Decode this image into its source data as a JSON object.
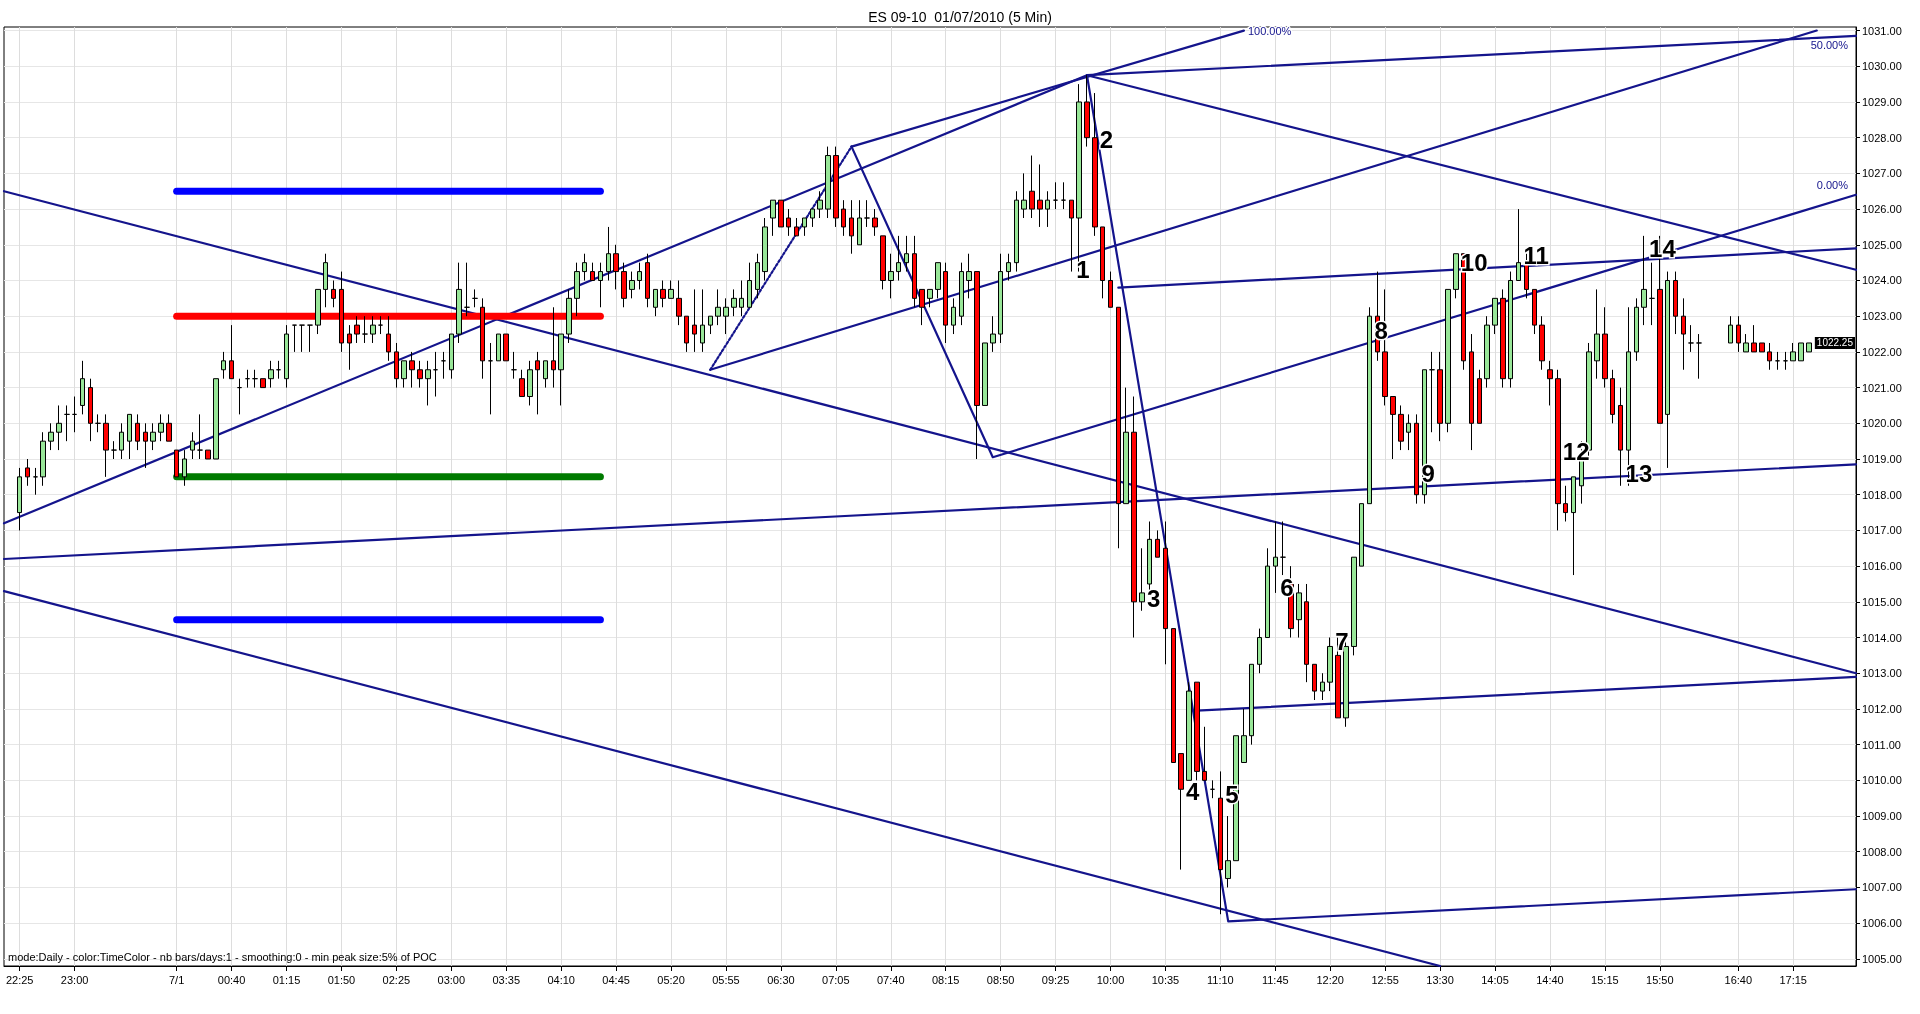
{
  "chart_data": {
    "type": "candlestick",
    "title": "ES 09-10  01/07/2010 (5 Min)",
    "x": [
      "2010-06-30T22:25",
      "2010-06-30T22:30",
      "2010-06-30T22:35",
      "2010-06-30T22:40",
      "2010-06-30T22:45",
      "2010-06-30T22:50",
      "2010-06-30T22:55",
      "2010-06-30T23:00",
      "2010-06-30T23:05",
      "2010-06-30T23:10",
      "2010-06-30T23:15",
      "2010-06-30T23:20",
      "2010-06-30T23:25",
      "2010-06-30T23:30",
      "2010-06-30T23:35",
      "2010-06-30T23:40",
      "2010-06-30T23:45",
      "2010-06-30T23:50",
      "2010-06-30T23:55",
      "2010-07-01T00:00",
      "2010-07-01T00:05",
      "2010-07-01T00:10",
      "2010-07-01T00:15",
      "2010-07-01T00:20",
      "2010-07-01T00:25",
      "2010-07-01T00:30",
      "2010-07-01T00:35",
      "2010-07-01T00:40",
      "2010-07-01T00:45",
      "2010-07-01T00:50",
      "2010-07-01T00:55",
      "2010-07-01T01:00",
      "2010-07-01T01:05",
      "2010-07-01T01:10",
      "2010-07-01T01:15",
      "2010-07-01T01:20",
      "2010-07-01T01:25",
      "2010-07-01T01:30",
      "2010-07-01T01:35",
      "2010-07-01T01:40",
      "2010-07-01T01:45",
      "2010-07-01T01:50",
      "2010-07-01T01:55",
      "2010-07-01T02:00",
      "2010-07-01T02:05",
      "2010-07-01T02:10",
      "2010-07-01T02:15",
      "2010-07-01T02:20",
      "2010-07-01T02:25",
      "2010-07-01T02:30",
      "2010-07-01T02:35",
      "2010-07-01T02:40",
      "2010-07-01T02:45",
      "2010-07-01T02:50",
      "2010-07-01T02:55",
      "2010-07-01T03:00",
      "2010-07-01T03:05",
      "2010-07-01T03:10",
      "2010-07-01T03:15",
      "2010-07-01T03:20",
      "2010-07-01T03:25",
      "2010-07-01T03:30",
      "2010-07-01T03:35",
      "2010-07-01T03:40",
      "2010-07-01T03:45",
      "2010-07-01T03:50",
      "2010-07-01T03:55",
      "2010-07-01T04:00",
      "2010-07-01T04:05",
      "2010-07-01T04:10",
      "2010-07-01T04:15",
      "2010-07-01T04:20",
      "2010-07-01T04:25",
      "2010-07-01T04:30",
      "2010-07-01T04:35",
      "2010-07-01T04:40",
      "2010-07-01T04:45",
      "2010-07-01T04:50",
      "2010-07-01T04:55",
      "2010-07-01T05:00",
      "2010-07-01T05:05",
      "2010-07-01T05:10",
      "2010-07-01T05:15",
      "2010-07-01T05:20",
      "2010-07-01T05:25",
      "2010-07-01T05:30",
      "2010-07-01T05:35",
      "2010-07-01T05:40",
      "2010-07-01T05:45",
      "2010-07-01T05:50",
      "2010-07-01T05:55",
      "2010-07-01T06:00",
      "2010-07-01T06:05",
      "2010-07-01T06:10",
      "2010-07-01T06:15",
      "2010-07-01T06:20",
      "2010-07-01T06:25",
      "2010-07-01T06:30",
      "2010-07-01T06:35",
      "2010-07-01T06:40",
      "2010-07-01T06:45",
      "2010-07-01T06:50",
      "2010-07-01T06:55",
      "2010-07-01T07:00",
      "2010-07-01T07:05",
      "2010-07-01T07:10",
      "2010-07-01T07:15",
      "2010-07-01T07:20",
      "2010-07-01T07:25",
      "2010-07-01T07:30",
      "2010-07-01T07:35",
      "2010-07-01T07:40",
      "2010-07-01T07:45",
      "2010-07-01T07:50",
      "2010-07-01T07:55",
      "2010-07-01T08:00",
      "2010-07-01T08:05",
      "2010-07-01T08:10",
      "2010-07-01T08:15",
      "2010-07-01T08:20",
      "2010-07-01T08:25",
      "2010-07-01T08:30",
      "2010-07-01T08:35",
      "2010-07-01T08:40",
      "2010-07-01T08:45",
      "2010-07-01T08:50",
      "2010-07-01T08:55",
      "2010-07-01T09:00",
      "2010-07-01T09:05",
      "2010-07-01T09:10",
      "2010-07-01T09:15",
      "2010-07-01T09:20",
      "2010-07-01T09:25",
      "2010-07-01T09:30",
      "2010-07-01T09:35",
      "2010-07-01T09:40",
      "2010-07-01T09:45",
      "2010-07-01T09:50",
      "2010-07-01T09:55",
      "2010-07-01T10:00",
      "2010-07-01T10:05",
      "2010-07-01T10:10",
      "2010-07-01T10:15",
      "2010-07-01T10:20",
      "2010-07-01T10:25",
      "2010-07-01T10:30",
      "2010-07-01T10:35",
      "2010-07-01T10:40",
      "2010-07-01T10:45",
      "2010-07-01T10:50",
      "2010-07-01T10:55",
      "2010-07-01T11:00",
      "2010-07-01T11:05",
      "2010-07-01T11:10",
      "2010-07-01T11:15",
      "2010-07-01T11:20",
      "2010-07-01T11:25",
      "2010-07-01T11:30",
      "2010-07-01T11:35",
      "2010-07-01T11:40",
      "2010-07-01T11:45",
      "2010-07-01T11:50",
      "2010-07-01T11:55",
      "2010-07-01T12:00",
      "2010-07-01T12:05",
      "2010-07-01T12:10",
      "2010-07-01T12:15",
      "2010-07-01T12:20",
      "2010-07-01T12:25",
      "2010-07-01T12:30",
      "2010-07-01T12:35",
      "2010-07-01T12:40",
      "2010-07-01T12:45",
      "2010-07-01T12:50",
      "2010-07-01T12:55",
      "2010-07-01T13:00",
      "2010-07-01T13:05",
      "2010-07-01T13:10",
      "2010-07-01T13:15",
      "2010-07-01T13:20",
      "2010-07-01T13:25",
      "2010-07-01T13:30",
      "2010-07-01T13:35",
      "2010-07-01T13:40",
      "2010-07-01T13:45",
      "2010-07-01T13:50",
      "2010-07-01T13:55",
      "2010-07-01T14:00",
      "2010-07-01T14:05",
      "2010-07-01T14:10",
      "2010-07-01T14:15",
      "2010-07-01T14:20",
      "2010-07-01T14:25",
      "2010-07-01T14:30",
      "2010-07-01T14:35",
      "2010-07-01T14:40",
      "2010-07-01T14:45",
      "2010-07-01T14:50",
      "2010-07-01T14:55",
      "2010-07-01T15:00",
      "2010-07-01T15:05",
      "2010-07-01T15:10",
      "2010-07-01T15:15",
      "2010-07-01T15:20",
      "2010-07-01T15:25",
      "2010-07-01T15:30",
      "2010-07-01T15:35",
      "2010-07-01T15:40",
      "2010-07-01T15:45",
      "2010-07-01T15:50",
      "2010-07-01T15:55",
      "2010-07-01T16:00",
      "2010-07-01T16:05",
      "2010-07-01T16:10",
      "2010-07-01T16:15",
      "2010-07-01T16:35",
      "2010-07-01T16:40",
      "2010-07-01T16:45",
      "2010-07-01T16:50",
      "2010-07-01T16:55",
      "2010-07-01T17:00",
      "2010-07-01T17:05",
      "2010-07-01T17:10",
      "2010-07-01T17:15",
      "2010-07-01T17:20",
      "2010-07-01T17:25"
    ],
    "ohlc": [
      [
        1017.5,
        1018.75,
        1017,
        1018.5
      ],
      [
        1018.75,
        1019,
        1018.25,
        1018.5
      ],
      [
        1018.5,
        1018.75,
        1018,
        1018.5
      ],
      [
        1018.5,
        1019.75,
        1018.25,
        1019.5
      ],
      [
        1019.5,
        1020,
        1019.25,
        1019.75
      ],
      [
        1019.75,
        1020.5,
        1019.25,
        1020
      ],
      [
        1020.25,
        1020.5,
        1019.5,
        1020.25
      ],
      [
        1020.25,
        1020.75,
        1019.75,
        1020.25
      ],
      [
        1020.5,
        1021.75,
        1020.25,
        1021.25
      ],
      [
        1021,
        1021.25,
        1019.5,
        1020
      ],
      [
        1020,
        1020.25,
        1019.75,
        1020
      ],
      [
        1020,
        1020.25,
        1018.5,
        1019.25
      ],
      [
        1019.25,
        1019.5,
        1019,
        1019.25
      ],
      [
        1019.25,
        1020,
        1019,
        1019.75
      ],
      [
        1019.5,
        1020.25,
        1019,
        1020.25
      ],
      [
        1020,
        1020.25,
        1019.25,
        1019.5
      ],
      [
        1019.75,
        1020,
        1018.75,
        1019.5
      ],
      [
        1019.5,
        1020,
        1019.25,
        1019.75
      ],
      [
        1019.75,
        1020.25,
        1019.5,
        1020
      ],
      [
        1020,
        1020.25,
        1019.5,
        1019.5
      ],
      [
        1019.25,
        1019.25,
        1018.5,
        1018.5
      ],
      [
        1018.5,
        1019.25,
        1018.25,
        1019
      ],
      [
        1019.25,
        1019.75,
        1019,
        1019.5
      ],
      [
        1019.25,
        1020.25,
        1019,
        1019.25
      ],
      [
        1019.25,
        1019.25,
        1019,
        1019
      ],
      [
        1019,
        1021.25,
        1019,
        1021.25
      ],
      [
        1021.5,
        1022,
        1021.25,
        1021.75
      ],
      [
        1021.75,
        1022.75,
        1021.25,
        1021.25
      ],
      [
        1021,
        1021.25,
        1020.25,
        1021
      ],
      [
        1021.25,
        1021.5,
        1021,
        1021.25
      ],
      [
        1021.25,
        1021.5,
        1021,
        1021.25
      ],
      [
        1021.25,
        1021.25,
        1021,
        1021
      ],
      [
        1021.25,
        1021.75,
        1021,
        1021.5
      ],
      [
        1021.5,
        1021.75,
        1021.25,
        1021.5
      ],
      [
        1021.25,
        1022.75,
        1021,
        1022.5
      ],
      [
        1022.75,
        1022.75,
        1022,
        1022.75
      ],
      [
        1022.75,
        1022.75,
        1022,
        1022.75
      ],
      [
        1022.75,
        1022.75,
        1022,
        1022.75
      ],
      [
        1022.75,
        1023.75,
        1022.5,
        1023.75
      ],
      [
        1023.75,
        1024.75,
        1023.25,
        1024.5
      ],
      [
        1023.75,
        1024,
        1023.25,
        1023.5
      ],
      [
        1023.75,
        1024.25,
        1022,
        1022.25
      ],
      [
        1022.5,
        1022.75,
        1021.5,
        1022.25
      ],
      [
        1022.75,
        1023,
        1022.25,
        1022.5
      ],
      [
        1022.5,
        1023,
        1022.25,
        1022.5
      ],
      [
        1022.5,
        1023,
        1022.25,
        1022.75
      ],
      [
        1022.75,
        1023,
        1022.5,
        1022.75
      ],
      [
        1022.5,
        1023,
        1021.75,
        1022
      ],
      [
        1022,
        1022.25,
        1021,
        1021.25
      ],
      [
        1021.25,
        1021.75,
        1021,
        1021.75
      ],
      [
        1021.75,
        1022,
        1021,
        1021.5
      ],
      [
        1021.5,
        1021.75,
        1021,
        1021.25
      ],
      [
        1021.25,
        1021.75,
        1020.5,
        1021.5
      ],
      [
        1021.5,
        1022,
        1020.75,
        1021.5
      ],
      [
        1021.75,
        1022,
        1021.25,
        1021.75
      ],
      [
        1021.5,
        1022.5,
        1021.25,
        1022.5
      ],
      [
        1022.5,
        1024.5,
        1022.25,
        1023.75
      ],
      [
        1023.25,
        1024.5,
        1023,
        1023.25
      ],
      [
        1023.5,
        1023.75,
        1023.25,
        1023.5
      ],
      [
        1023.25,
        1023.5,
        1021.25,
        1021.75
      ],
      [
        1021.75,
        1022.25,
        1020.25,
        1021.75
      ],
      [
        1021.75,
        1022.5,
        1021.75,
        1022.5
      ],
      [
        1022.5,
        1022.5,
        1021.75,
        1021.75
      ],
      [
        1021.5,
        1022,
        1021.25,
        1021.5
      ],
      [
        1021.25,
        1021.5,
        1020.75,
        1020.75
      ],
      [
        1020.75,
        1021.75,
        1020.5,
        1021.5
      ],
      [
        1021.75,
        1022,
        1020.25,
        1021.5
      ],
      [
        1021.25,
        1021.75,
        1021,
        1021.75
      ],
      [
        1021.75,
        1023.25,
        1021,
        1021.5
      ],
      [
        1021.5,
        1022.5,
        1020.5,
        1022.5
      ],
      [
        1022.5,
        1023.75,
        1022.25,
        1023.5
      ],
      [
        1023.5,
        1024.5,
        1023,
        1024.25
      ],
      [
        1024.25,
        1024.75,
        1024,
        1024.5
      ],
      [
        1024.25,
        1024.5,
        1024,
        1024
      ],
      [
        1024,
        1024.5,
        1023.25,
        1024.25
      ],
      [
        1024.25,
        1025.5,
        1024,
        1024.75
      ],
      [
        1024.75,
        1025,
        1023.75,
        1024.25
      ],
      [
        1024.25,
        1024.5,
        1023.25,
        1023.5
      ],
      [
        1023.75,
        1024.25,
        1023.5,
        1024
      ],
      [
        1024,
        1024.5,
        1023.75,
        1024.25
      ],
      [
        1024.5,
        1024.75,
        1023.25,
        1023.5
      ],
      [
        1023.25,
        1023.75,
        1023,
        1023.75
      ],
      [
        1023.75,
        1024,
        1023.25,
        1023.5
      ],
      [
        1023.5,
        1024,
        1023.5,
        1023.75
      ],
      [
        1023.5,
        1024,
        1022.75,
        1023
      ],
      [
        1023,
        1023,
        1022,
        1022.25
      ],
      [
        1022.75,
        1023.75,
        1022,
        1022.5
      ],
      [
        1022.25,
        1023.75,
        1022,
        1022.75
      ],
      [
        1022.75,
        1023,
        1022.5,
        1023
      ],
      [
        1023,
        1023.75,
        1022.75,
        1023.25
      ],
      [
        1023,
        1023.5,
        1022.5,
        1023.25
      ],
      [
        1023.25,
        1023.75,
        1023,
        1023.5
      ],
      [
        1023.25,
        1024,
        1023,
        1023.5
      ],
      [
        1023.25,
        1024.5,
        1023.25,
        1024
      ],
      [
        1023.75,
        1024.75,
        1023.5,
        1024.5
      ],
      [
        1024.25,
        1025.75,
        1024,
        1025.5
      ],
      [
        1025.75,
        1026.25,
        1025.25,
        1026.25
      ],
      [
        1026.25,
        1026.25,
        1025.5,
        1025.5
      ],
      [
        1025.75,
        1026,
        1025.25,
        1025.5
      ],
      [
        1025.5,
        1025.75,
        1025.25,
        1025.25
      ],
      [
        1025.5,
        1025.75,
        1025.25,
        1025.75
      ],
      [
        1025.75,
        1026,
        1025.5,
        1026
      ],
      [
        1026,
        1026.5,
        1025.75,
        1026.25
      ],
      [
        1026,
        1027.75,
        1025.75,
        1027.5
      ],
      [
        1027.5,
        1027.75,
        1025.5,
        1025.75
      ],
      [
        1026,
        1026.25,
        1025.25,
        1025.5
      ],
      [
        1025.75,
        1026.25,
        1024.75,
        1025.25
      ],
      [
        1025,
        1026.25,
        1025,
        1025.75
      ],
      [
        1025.75,
        1026.25,
        1025.5,
        1025.75
      ],
      [
        1025.75,
        1026,
        1025.25,
        1025.5
      ],
      [
        1025.25,
        1025.25,
        1023.75,
        1024
      ],
      [
        1024,
        1024.75,
        1023.5,
        1024.25
      ],
      [
        1024.25,
        1025.25,
        1024,
        1024.5
      ],
      [
        1024.5,
        1025.25,
        1024.25,
        1024.75
      ],
      [
        1024.75,
        1025.25,
        1023.25,
        1023.5
      ],
      [
        1023.75,
        1023.75,
        1022.75,
        1023.25
      ],
      [
        1023.5,
        1023.75,
        1023.25,
        1023.75
      ],
      [
        1023.75,
        1024.5,
        1023.5,
        1024.5
      ],
      [
        1024.25,
        1024.5,
        1022.25,
        1022.75
      ],
      [
        1022.75,
        1023.5,
        1022.5,
        1023.25
      ],
      [
        1023,
        1024.5,
        1022.75,
        1024.25
      ],
      [
        1024,
        1024.75,
        1023.5,
        1024.25
      ],
      [
        1024.25,
        1024.25,
        1019,
        1020.5
      ],
      [
        1020.5,
        1022.25,
        1020.5,
        1022.25
      ],
      [
        1022.25,
        1023,
        1022,
        1022.5
      ],
      [
        1022.5,
        1024.75,
        1022.25,
        1024.25
      ],
      [
        1024.25,
        1024.75,
        1024,
        1024.5
      ],
      [
        1024.5,
        1026.5,
        1024.25,
        1026.25
      ],
      [
        1026,
        1027,
        1025.75,
        1026.25
      ],
      [
        1026.5,
        1027.5,
        1025.75,
        1026
      ],
      [
        1026.25,
        1027.25,
        1025.5,
        1026
      ],
      [
        1026,
        1026.5,
        1025.5,
        1026.25
      ],
      [
        1026.25,
        1026.75,
        1026,
        1026.25
      ],
      [
        1026.25,
        1026.75,
        1026,
        1026.25
      ],
      [
        1026.25,
        1026.25,
        1024.25,
        1025.75
      ],
      [
        1025.75,
        1029.5,
        1024.25,
        1029
      ],
      [
        1029,
        1029.75,
        1027.75,
        1028
      ],
      [
        1028,
        1029.25,
        1025.25,
        1025.5
      ],
      [
        1025.5,
        1025.5,
        1023.5,
        1024
      ],
      [
        1024,
        1024.25,
        1023.25,
        1023.25
      ],
      [
        1023.25,
        1023.25,
        1016.5,
        1017.75
      ],
      [
        1017.75,
        1021,
        1017.75,
        1019.75
      ],
      [
        1019.75,
        1020.75,
        1014,
        1015
      ],
      [
        1015,
        1016.5,
        1014.75,
        1015.25
      ],
      [
        1015.5,
        1017.25,
        1015.25,
        1016.75
      ],
      [
        1016.75,
        1017,
        1016.25,
        1016.25
      ],
      [
        1016.5,
        1017.25,
        1013.25,
        1014.25
      ],
      [
        1014.25,
        1014.25,
        1010.5,
        1010.5
      ],
      [
        1010.75,
        1010.75,
        1007.5,
        1009.75
      ],
      [
        1010,
        1012.75,
        1010,
        1012.5
      ],
      [
        1012.75,
        1012.75,
        1010,
        1010.25
      ],
      [
        1010.25,
        1011.5,
        1010,
        1010
      ],
      [
        1009.75,
        1010,
        1009.5,
        1009.75
      ],
      [
        1009.5,
        1010.25,
        1006.25,
        1007.5
      ],
      [
        1007.25,
        1009,
        1007,
        1007.75
      ],
      [
        1007.75,
        1011.25,
        1007.75,
        1011.25
      ],
      [
        1010.5,
        1012,
        1010.5,
        1011.25
      ],
      [
        1011.25,
        1013.25,
        1011,
        1013.25
      ],
      [
        1013.25,
        1014.25,
        1013,
        1014
      ],
      [
        1014,
        1016.5,
        1014,
        1016
      ],
      [
        1016,
        1017.25,
        1015.25,
        1016.25
      ],
      [
        1016.25,
        1017.25,
        1015.75,
        1016.25
      ],
      [
        1015.5,
        1016,
        1014,
        1014.25
      ],
      [
        1014.5,
        1015.5,
        1014,
        1015.25
      ],
      [
        1015,
        1015.5,
        1012.75,
        1013.25
      ],
      [
        1013.25,
        1013.25,
        1012.25,
        1012.5
      ],
      [
        1012.5,
        1013,
        1012.25,
        1012.75
      ],
      [
        1012.75,
        1014,
        1012.5,
        1013.75
      ],
      [
        1013.5,
        1014,
        1011.75,
        1011.75
      ],
      [
        1011.75,
        1014,
        1011.5,
        1013.75
      ],
      [
        1013.75,
        1016.25,
        1013.5,
        1016.25
      ],
      [
        1016,
        1017.75,
        1016,
        1017.75
      ],
      [
        1017.75,
        1023.25,
        1017.75,
        1023
      ],
      [
        1023,
        1024.25,
        1021.75,
        1022
      ],
      [
        1022,
        1023.75,
        1020.5,
        1020.75
      ],
      [
        1020.75,
        1020.75,
        1019,
        1020.25
      ],
      [
        1020.25,
        1020.5,
        1019.25,
        1019.5
      ],
      [
        1019.75,
        1020.25,
        1019.25,
        1020
      ],
      [
        1020,
        1020.25,
        1017.75,
        1018
      ],
      [
        1018,
        1021.5,
        1017.75,
        1021.5
      ],
      [
        1021.5,
        1022,
        1019.75,
        1021.5
      ],
      [
        1021.5,
        1022,
        1019.5,
        1020
      ],
      [
        1020,
        1023.75,
        1019.75,
        1023.75
      ],
      [
        1023.75,
        1024.75,
        1023.5,
        1024.75
      ],
      [
        1024.75,
        1024.75,
        1021.5,
        1021.75
      ],
      [
        1022,
        1022.5,
        1019.25,
        1020
      ],
      [
        1021.25,
        1021.5,
        1020,
        1020
      ],
      [
        1021.25,
        1023,
        1021,
        1022.75
      ],
      [
        1022.75,
        1023.5,
        1022.5,
        1023.5
      ],
      [
        1023.5,
        1023.75,
        1021,
        1021.25
      ],
      [
        1021.25,
        1024.25,
        1021,
        1024
      ],
      [
        1024,
        1026,
        1024,
        1024.5
      ],
      [
        1024.5,
        1024.75,
        1023.5,
        1023.75
      ],
      [
        1023.75,
        1023.75,
        1022.5,
        1022.75
      ],
      [
        1022.75,
        1023,
        1021.5,
        1021.75
      ],
      [
        1021.5,
        1021.75,
        1020.5,
        1021.25
      ],
      [
        1021.25,
        1021.5,
        1017,
        1017.75
      ],
      [
        1017.75,
        1018.25,
        1017.25,
        1017.5
      ],
      [
        1017.5,
        1018.5,
        1015.75,
        1018.5
      ],
      [
        1018.25,
        1019.5,
        1017.75,
        1019
      ],
      [
        1019.25,
        1022.25,
        1019,
        1022
      ],
      [
        1021.75,
        1023.75,
        1021.25,
        1022.5
      ],
      [
        1022.5,
        1023.25,
        1021,
        1021.25
      ],
      [
        1021.25,
        1021.5,
        1020,
        1020.25
      ],
      [
        1020.5,
        1021,
        1018.25,
        1019.25
      ],
      [
        1019.25,
        1023.25,
        1018.25,
        1022
      ],
      [
        1022,
        1023.5,
        1021.75,
        1023.25
      ],
      [
        1023.25,
        1025.25,
        1022.75,
        1023.75
      ],
      [
        1023.5,
        1024.5,
        1022.75,
        1023.5
      ],
      [
        1023.75,
        1025.25,
        1020,
        1020
      ],
      [
        1020.25,
        1024.25,
        1018.75,
        1024
      ],
      [
        1024,
        1024.25,
        1022.5,
        1023
      ],
      [
        1023,
        1023.5,
        1021.5,
        1022.5
      ],
      [
        1022.25,
        1022.75,
        1022,
        1022.25
      ],
      [
        1022.25,
        1022.5,
        1021.25,
        1022.25
      ],
      [
        1022.25,
        1023,
        1022.25,
        1022.75
      ],
      [
        1022.75,
        1023,
        1022,
        1022.25
      ],
      [
        1022,
        1022.5,
        1022,
        1022.25
      ],
      [
        1022.25,
        1022.75,
        1022,
        1022
      ],
      [
        1022.25,
        1022.25,
        1022,
        1022
      ],
      [
        1022,
        1022.25,
        1021.5,
        1021.75
      ],
      [
        1021.75,
        1022,
        1021.5,
        1021.75
      ],
      [
        1021.75,
        1022,
        1021.5,
        1021.75
      ],
      [
        1021.75,
        1022.25,
        1021.75,
        1022
      ],
      [
        1021.75,
        1022.25,
        1021.75,
        1022.25
      ],
      [
        1022,
        1022.25,
        1022,
        1022.25
      ]
    ],
    "series": [
      {
        "type": "line",
        "color": "#14148c",
        "x": [
          "2010-06-30T22:15",
          "2010-07-01T17:55"
        ],
        "values": [
          1026.5,
          1013
        ]
      },
      {
        "type": "line",
        "color": "#14148c",
        "x": [
          "2010-06-30T22:15",
          "2010-07-01T13:30"
        ],
        "values": [
          1015.3,
          1004.8
        ]
      },
      {
        "type": "line",
        "color": "#14148c",
        "x": [
          "2010-06-30T22:15",
          "2010-07-01T17:55"
        ],
        "values": [
          1016.2,
          1018.85
        ]
      },
      {
        "type": "line",
        "color": "#14148c",
        "x": [
          "2010-07-01T05:45",
          "2010-07-01T17:30"
        ],
        "values": [
          1021.5,
          1031
        ]
      },
      {
        "type": "line",
        "color": "#14148c",
        "x": [
          "2010-06-30T22:15",
          "2010-07-01T09:45",
          "2010-07-01T17:55"
        ],
        "values": [
          1017.2,
          1029.75,
          1024.3
        ]
      },
      {
        "type": "line",
        "name": "50.00%",
        "color": "#14148c",
        "x": [
          "2010-07-01T09:45",
          "2010-07-01T17:55"
        ],
        "values": [
          1029.75,
          1030.85
        ]
      },
      {
        "type": "line",
        "name": "0.00%",
        "color": "#14148c",
        "x": [
          "2010-07-01T07:15",
          "2010-07-01T08:45",
          "2010-07-01T17:55"
        ],
        "values": [
          1027.75,
          1019.05,
          1026.4
        ]
      },
      {
        "type": "line",
        "name": "100.00%",
        "color": "#14148c",
        "x": [
          "2010-07-01T07:15",
          "2010-07-01T11:25"
        ],
        "values": [
          1027.75,
          1031
        ]
      },
      {
        "type": "line",
        "color": "#14148c",
        "x": [
          "2010-07-01T10:05",
          "2010-07-01T17:55"
        ],
        "values": [
          1023.8,
          1024.9
        ]
      },
      {
        "type": "line",
        "color": "#14148c",
        "x": [
          "2010-07-01T10:55",
          "2010-07-01T17:55"
        ],
        "values": [
          1011.95,
          1012.9
        ]
      },
      {
        "type": "line",
        "color": "#14148c",
        "x": [
          "2010-07-01T09:45",
          "2010-07-01T11:15",
          "2010-07-01T17:55"
        ],
        "values": [
          1029.75,
          1006.05,
          1006.95
        ]
      },
      {
        "type": "line",
        "color": "#14148c",
        "line_style": "dotted",
        "x": [
          "2010-07-01T05:45",
          "2010-07-01T07:15"
        ],
        "values": [
          1021.5,
          1027.75
        ]
      },
      {
        "type": "line",
        "color": "#0000ff",
        "x": [
          "2010-07-01T00:05",
          "2010-07-01T04:35"
        ],
        "values": [
          1026.5,
          1026.5
        ]
      },
      {
        "type": "line",
        "color": "#ff0000",
        "x": [
          "2010-07-01T00:05",
          "2010-07-01T04:35"
        ],
        "values": [
          1023,
          1023
        ]
      },
      {
        "type": "line",
        "color": "#007a00",
        "x": [
          "2010-07-01T00:05",
          "2010-07-01T04:35"
        ],
        "values": [
          1018.5,
          1018.5
        ]
      },
      {
        "type": "line",
        "color": "#0000ff",
        "x": [
          "2010-07-01T00:05",
          "2010-07-01T04:35"
        ],
        "values": [
          1014.5,
          1014.5
        ]
      }
    ],
    "xlim": [
      "2010-06-30T22:15",
      "2010-07-01T17:55"
    ],
    "xticks": [
      {
        "value": "2010-06-30T22:25",
        "label": "22:25"
      },
      {
        "value": "2010-06-30T23:00",
        "label": "23:00"
      },
      {
        "value": "2010-07-01T00:05",
        "label": "7/1"
      },
      {
        "value": "2010-07-01T00:40",
        "label": "00:40"
      },
      {
        "value": "2010-07-01T01:15",
        "label": "01:15"
      },
      {
        "value": "2010-07-01T01:50",
        "label": "01:50"
      },
      {
        "value": "2010-07-01T02:25",
        "label": "02:25"
      },
      {
        "value": "2010-07-01T03:00",
        "label": "03:00"
      },
      {
        "value": "2010-07-01T03:35",
        "label": "03:35"
      },
      {
        "value": "2010-07-01T04:10",
        "label": "04:10"
      },
      {
        "value": "2010-07-01T04:45",
        "label": "04:45"
      },
      {
        "value": "2010-07-01T05:20",
        "label": "05:20"
      },
      {
        "value": "2010-07-01T05:55",
        "label": "05:55"
      },
      {
        "value": "2010-07-01T06:30",
        "label": "06:30"
      },
      {
        "value": "2010-07-01T07:05",
        "label": "07:05"
      },
      {
        "value": "2010-07-01T07:40",
        "label": "07:40"
      },
      {
        "value": "2010-07-01T08:15",
        "label": "08:15"
      },
      {
        "value": "2010-07-01T08:50",
        "label": "08:50"
      },
      {
        "value": "2010-07-01T09:25",
        "label": "09:25"
      },
      {
        "value": "2010-07-01T10:00",
        "label": "10:00"
      },
      {
        "value": "2010-07-01T10:35",
        "label": "10:35"
      },
      {
        "value": "2010-07-01T11:10",
        "label": "11:10"
      },
      {
        "value": "2010-07-01T11:45",
        "label": "11:45"
      },
      {
        "value": "2010-07-01T12:20",
        "label": "12:20"
      },
      {
        "value": "2010-07-01T12:55",
        "label": "12:55"
      },
      {
        "value": "2010-07-01T13:30",
        "label": "13:30"
      },
      {
        "value": "2010-07-01T14:05",
        "label": "14:05"
      },
      {
        "value": "2010-07-01T14:40",
        "label": "14:40"
      },
      {
        "value": "2010-07-01T15:15",
        "label": "15:15"
      },
      {
        "value": "2010-07-01T15:50",
        "label": "15:50"
      },
      {
        "value": "2010-07-01T16:40",
        "label": "16:40"
      },
      {
        "value": "2010-07-01T17:15",
        "label": "17:15"
      }
    ],
    "ylim": [
      1004.8,
      1031.1
    ],
    "yticks": [
      {
        "value": 1005,
        "label": "1005.00"
      },
      {
        "value": 1006,
        "label": "1006.00"
      },
      {
        "value": 1007,
        "label": "1007.00"
      },
      {
        "value": 1008,
        "label": "1008.00"
      },
      {
        "value": 1009,
        "label": "1009.00"
      },
      {
        "value": 1010,
        "label": "1010.00"
      },
      {
        "value": 1011,
        "label": "1011.00"
      },
      {
        "value": 1012,
        "label": "1012.00"
      },
      {
        "value": 1013,
        "label": "1013.00"
      },
      {
        "value": 1014,
        "label": "1014.00"
      },
      {
        "value": 1015,
        "label": "1015.00"
      },
      {
        "value": 1016,
        "label": "1016.00"
      },
      {
        "value": 1017,
        "label": "1017.00"
      },
      {
        "value": 1018,
        "label": "1018.00"
      },
      {
        "value": 1019,
        "label": "1019.00"
      },
      {
        "value": 1020,
        "label": "1020.00"
      },
      {
        "value": 1021,
        "label": "1021.00"
      },
      {
        "value": 1022,
        "label": "1022.00"
      },
      {
        "value": 1023,
        "label": "1023.00"
      },
      {
        "value": 1024,
        "label": "1024.00"
      },
      {
        "value": 1025,
        "label": "1025.00"
      },
      {
        "value": 1026,
        "label": "1026.00"
      },
      {
        "value": 1027,
        "label": "1027.00"
      },
      {
        "value": 1028,
        "label": "1028.00"
      },
      {
        "value": 1029,
        "label": "1029.00"
      },
      {
        "value": 1030,
        "label": "1030.00"
      },
      {
        "value": 1031,
        "label": "1031.00"
      }
    ],
    "grid": true,
    "annotations": [
      {
        "text": "1",
        "x": "2010-07-01T09:35",
        "y": 1024.3
      },
      {
        "text": "2",
        "x": "2010-07-01T09:50",
        "y": 1027.95
      },
      {
        "text": "3",
        "x": "2010-07-01T10:20",
        "y": 1015.1
      },
      {
        "text": "4",
        "x": "2010-07-01T10:45",
        "y": 1009.7
      },
      {
        "text": "5",
        "x": "2010-07-01T11:10",
        "y": 1009.6
      },
      {
        "text": "6",
        "x": "2010-07-01T11:45",
        "y": 1015.4
      },
      {
        "text": "7",
        "x": "2010-07-01T12:20",
        "y": 1013.9
      },
      {
        "text": "8",
        "x": "2010-07-01T12:45",
        "y": 1022.6
      },
      {
        "text": "9",
        "x": "2010-07-01T13:15",
        "y": 1018.6
      },
      {
        "text": "10",
        "x": "2010-07-01T13:40",
        "y": 1024.5
      },
      {
        "text": "11",
        "x": "2010-07-01T14:20",
        "y": 1024.7
      },
      {
        "text": "12",
        "x": "2010-07-01T14:45",
        "y": 1019.2
      },
      {
        "text": "13",
        "x": "2010-07-01T15:25",
        "y": 1018.6
      },
      {
        "text": "14",
        "x": "2010-07-01T15:40",
        "y": 1024.9
      },
      {
        "text": "1022.25",
        "x": "2010-07-01T17:25",
        "y": 1022.25
      },
      "mode:Daily - color:TimeColor - nb bars/days:1 - smoothing:0 - min peak size:5% of POC"
    ]
  }
}
